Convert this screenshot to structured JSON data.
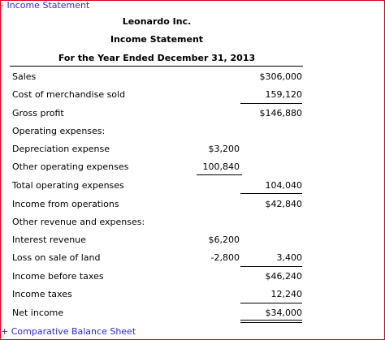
{
  "links": {
    "top": "- Income Statement",
    "bottom": "+ Comparative Balance Sheet"
  },
  "header": {
    "company": "Leonardo Inc.",
    "title": "Income Statement",
    "period": "For the Year Ended December 31, 2013"
  },
  "rows": [
    {
      "label": "Sales",
      "col1": "",
      "col2": "$306,000"
    },
    {
      "label": "Cost of merchandise sold",
      "col1": "",
      "col2": "159,120"
    },
    {
      "label": "Gross profit",
      "col1": "",
      "col2": "$146,880"
    },
    {
      "label": "Operating expenses:",
      "col1": "",
      "col2": ""
    },
    {
      "label": "Depreciation expense",
      "col1": "$3,200",
      "col2": ""
    },
    {
      "label": "Other operating expenses",
      "col1": "100,840",
      "col2": ""
    },
    {
      "label": "Total operating expenses",
      "col1": "",
      "col2": "104,040"
    },
    {
      "label": "Income from operations",
      "col1": "",
      "col2": "$42,840"
    },
    {
      "label": "Other revenue and expenses:",
      "col1": "",
      "col2": ""
    },
    {
      "label": "Interest revenue",
      "col1": "$6,200",
      "col2": ""
    },
    {
      "label": "Loss on sale of land",
      "col1": "-2,800",
      "col2": "3,400"
    },
    {
      "label": "Income before taxes",
      "col1": "",
      "col2": "$46,240"
    },
    {
      "label": "Income taxes",
      "col1": "",
      "col2": "12,240"
    },
    {
      "label": "Net income",
      "col1": "",
      "col2": "$34,000"
    }
  ]
}
